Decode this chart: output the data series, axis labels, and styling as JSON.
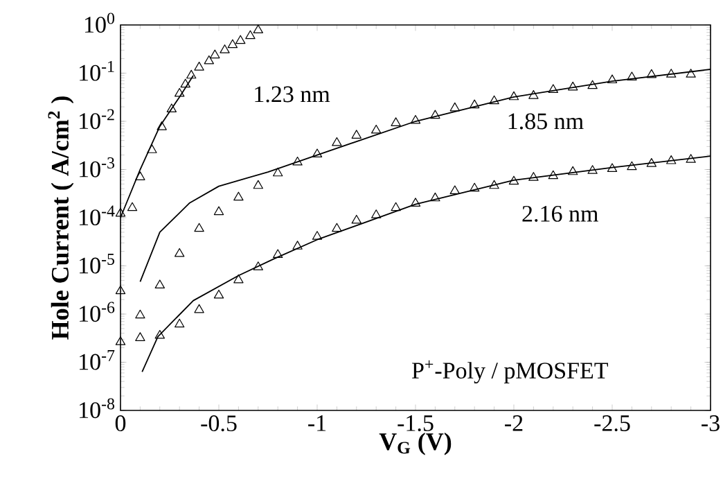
{
  "chart_data": {
    "type": "line",
    "xlabel": "V$_{G}$ (V)",
    "ylabel": "Hole Current ( A/cm$^{2}$ )",
    "log": "y",
    "grid": false,
    "xlim": [
      0,
      -3
    ],
    "xticks": [
      0,
      -0.5,
      -1,
      -1.5,
      -2,
      -2.5,
      -3
    ],
    "ylim": [
      1e-08,
      1
    ],
    "yticks": [
      {
        "value": 1e-08,
        "label": "10$^{-8}$"
      },
      {
        "value": 1e-07,
        "label": "10$^{-7}$"
      },
      {
        "value": 1e-06,
        "label": "10$^{-6}$"
      },
      {
        "value": 1e-05,
        "label": "10$^{-5}$"
      },
      {
        "value": 0.0001,
        "label": "10$^{-4}$"
      },
      {
        "value": 0.001,
        "label": "10$^{-3}$"
      },
      {
        "value": 0.01,
        "label": "10$^{-2}$"
      },
      {
        "value": 0.1,
        "label": "10$^{-1}$"
      },
      {
        "value": 1,
        "label": "10$^{0}$"
      }
    ],
    "series": [
      {
        "type": "scatter",
        "marker": "triangle",
        "color": "#000000",
        "x": [
          0,
          -0.06,
          -0.1,
          -0.16,
          -0.21,
          -0.26,
          -0.3,
          -0.33,
          -0.36,
          -0.4,
          -0.45,
          -0.48,
          -0.53,
          -0.57,
          -0.61,
          -0.66,
          -0.7
        ],
        "values": [
          0.00013,
          0.00017,
          0.00074,
          0.0027,
          0.0081,
          0.019,
          0.04,
          0.062,
          0.095,
          0.14,
          0.19,
          0.25,
          0.32,
          0.41,
          0.5,
          0.63,
          0.83
        ]
      },
      {
        "type": "scatter",
        "marker": "triangle",
        "color": "#000000",
        "x": [
          0,
          -0.1,
          -0.2,
          -0.3,
          -0.4,
          -0.5,
          -0.6,
          -0.7,
          -0.8,
          -0.9,
          -1.0,
          -1.1,
          -1.2,
          -1.3,
          -1.4,
          -1.5,
          -1.6,
          -1.7,
          -1.8,
          -1.9,
          -2.0,
          -2.1,
          -2.2,
          -2.3,
          -2.4,
          -2.5,
          -2.6,
          -2.7,
          -2.8,
          -2.9
        ],
        "values": [
          3.2e-06,
          1e-06,
          4.2e-06,
          1.9e-05,
          6.3e-05,
          0.00014,
          0.00028,
          0.00049,
          0.00089,
          0.0015,
          0.0022,
          0.0038,
          0.0054,
          0.0069,
          0.0098,
          0.011,
          0.014,
          0.02,
          0.023,
          0.028,
          0.034,
          0.036,
          0.048,
          0.054,
          0.058,
          0.076,
          0.087,
          0.098,
          0.1,
          0.1
        ]
      },
      {
        "type": "scatter",
        "marker": "triangle",
        "color": "#000000",
        "x": [
          0,
          -0.1,
          -0.2,
          -0.3,
          -0.4,
          -0.5,
          -0.6,
          -0.7,
          -0.8,
          -0.9,
          -1.0,
          -1.1,
          -1.2,
          -1.3,
          -1.4,
          -1.5,
          -1.6,
          -1.7,
          -1.8,
          -1.9,
          -2.0,
          -2.1,
          -2.2,
          -2.3,
          -2.4,
          -2.5,
          -2.6,
          -2.7,
          -2.8,
          -2.9
        ],
        "values": [
          2.8e-07,
          3.4e-07,
          3.8e-07,
          6.5e-07,
          1.3e-06,
          2.6e-06,
          5.4e-06,
          1e-05,
          1.8e-05,
          2.7e-05,
          4.3e-05,
          6.3e-05,
          9.3e-05,
          0.00012,
          0.00017,
          0.00021,
          0.00027,
          0.00038,
          0.00043,
          0.00049,
          0.0006,
          0.00072,
          0.00078,
          0.00095,
          0.001,
          0.0011,
          0.0012,
          0.0014,
          0.0016,
          0.0017
        ]
      },
      {
        "color": "#000000",
        "x": [
          0,
          -0.1,
          -0.2,
          -0.3,
          -0.37
        ],
        "values": [
          0.0001,
          0.001,
          0.0079,
          0.032,
          0.089
        ]
      },
      {
        "color": "#000000",
        "x": [
          -0.1,
          -0.2,
          -0.35,
          -0.5,
          -0.75,
          -1.0,
          -1.5,
          -2.0,
          -2.5,
          -3.0
        ],
        "values": [
          4.7e-06,
          5e-05,
          0.0002,
          0.00045,
          0.00089,
          0.002,
          0.01,
          0.032,
          0.068,
          0.12
        ]
      },
      {
        "color": "#000000",
        "x": [
          -0.11,
          -0.19,
          -0.37,
          -0.6,
          -0.78,
          -1.0,
          -1.5,
          -2.0,
          -2.5,
          -3.0
        ],
        "values": [
          6.3e-08,
          3.4e-07,
          1.9e-06,
          6.3e-06,
          1.4e-05,
          3.5e-05,
          0.00019,
          0.0006,
          0.0011,
          0.0019
        ]
      }
    ],
    "annotations": [
      "1.23 nm",
      "1.85 nm",
      "2.16 nm",
      "P$^{+}$-Poly / pMOSFET"
    ]
  }
}
